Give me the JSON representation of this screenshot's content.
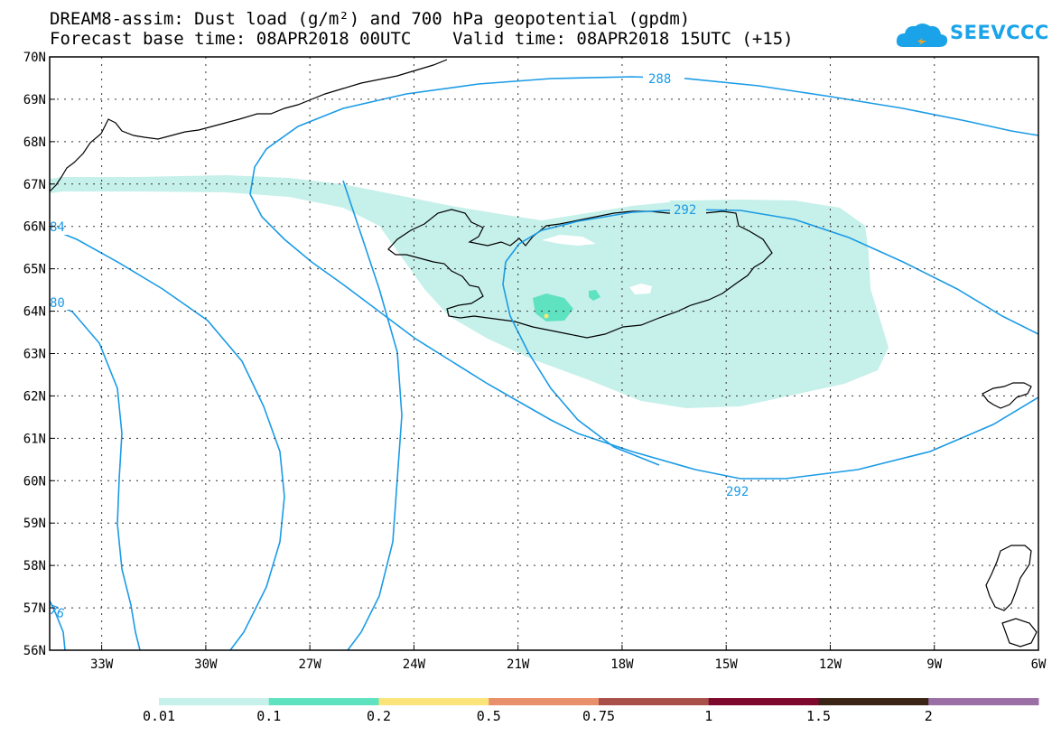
{
  "title": {
    "line1": "DREAM8-assim: Dust load (g/m²) and 700 hPa geopotential (gpdm)",
    "line2": "Forecast base time: 08APR2018 00UTC    Valid time: 08APR2018 15UTC (+15)"
  },
  "logo": {
    "text": "SEEVCCC",
    "icon": "cloud-icon",
    "color": "#1aa3e8"
  },
  "map": {
    "lat_labels": [
      "70N",
      "69N",
      "68N",
      "67N",
      "66N",
      "65N",
      "64N",
      "63N",
      "62N",
      "61N",
      "60N",
      "59N",
      "58N",
      "57N",
      "56N"
    ],
    "lon_labels": [
      "33W",
      "30W",
      "27W",
      "24W",
      "21W",
      "18W",
      "15W",
      "12W",
      "9W",
      "6W"
    ],
    "lat_range": [
      56,
      70
    ],
    "lon_range": [
      -34.5,
      -6
    ],
    "grid": "dotted",
    "contour_color": "#1a9be6",
    "dust_fill_color": "#c6f0ea",
    "contour_labels": [
      "288",
      "292",
      "292",
      "84",
      "80",
      "76"
    ],
    "contour_values": [
      288,
      292,
      284,
      280,
      276
    ]
  },
  "colorbar": {
    "colors": [
      "#c6f0ea",
      "#5ee2c0",
      "#fbe57a",
      "#e88f6c",
      "#a9504a",
      "#7d0a2e",
      "#3b2416",
      "#9b6fa6"
    ],
    "labels": [
      "0.01",
      "0.1",
      "0.2",
      "0.5",
      "0.75",
      "1",
      "1.5",
      "2"
    ]
  }
}
